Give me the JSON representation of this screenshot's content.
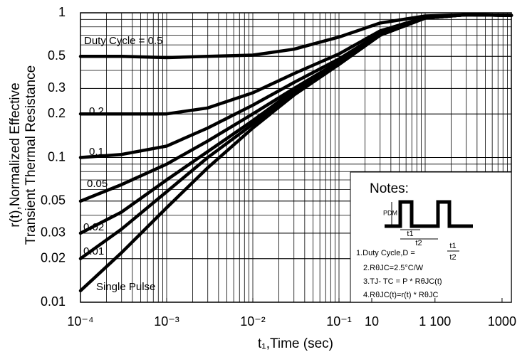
{
  "chart_data": {
    "type": "line",
    "log_x": true,
    "log_y": true,
    "grid": true,
    "xlabel": "t₁,Time (sec)",
    "ylabel": [
      "r(t),Normalized Effective",
      "Transient Thermal Resistance"
    ],
    "xlim": [
      0.0001,
      10
    ],
    "ylim": [
      0.01,
      1
    ],
    "xticks": [
      {
        "value": 0.0001,
        "label": "10⁻⁴"
      },
      {
        "value": 0.001,
        "label": "10⁻³"
      },
      {
        "value": 0.01,
        "label": "10⁻²"
      },
      {
        "value": 0.1,
        "label": "10⁻¹"
      },
      {
        "value": 0.24,
        "label": "10"
      },
      {
        "value": 1.3,
        "label": "1 100"
      },
      {
        "value": 7.8,
        "label": "1000"
      }
    ],
    "yticks": [
      1,
      0.5,
      0.3,
      0.2,
      0.1,
      0.05,
      0.03,
      0.02,
      0.01
    ],
    "x": [
      0.0001,
      0.0003,
      0.001,
      0.003,
      0.01,
      0.03,
      0.1,
      0.3,
      1,
      3,
      10
    ],
    "series": [
      {
        "name": "Duty Cycle = 0.5",
        "color": "#000000",
        "values": [
          0.5,
          0.5,
          0.49,
          0.5,
          0.51,
          0.56,
          0.68,
          0.85,
          0.95,
          0.97,
          0.96
        ]
      },
      {
        "name": "0.2",
        "color": "#000000",
        "values": [
          0.2,
          0.2,
          0.2,
          0.22,
          0.28,
          0.38,
          0.52,
          0.75,
          0.93,
          0.97,
          0.96
        ]
      },
      {
        "name": "0.1",
        "color": "#000000",
        "values": [
          0.1,
          0.105,
          0.12,
          0.16,
          0.23,
          0.33,
          0.48,
          0.72,
          0.92,
          0.97,
          0.96
        ]
      },
      {
        "name": "0.05",
        "color": "#000000",
        "values": [
          0.05,
          0.065,
          0.09,
          0.13,
          0.2,
          0.3,
          0.46,
          0.71,
          0.92,
          0.97,
          0.96
        ]
      },
      {
        "name": "0.02",
        "color": "#000000",
        "values": [
          0.03,
          0.042,
          0.07,
          0.11,
          0.18,
          0.29,
          0.45,
          0.7,
          0.92,
          0.97,
          0.96
        ]
      },
      {
        "name": "0.01",
        "color": "#000000",
        "values": [
          0.02,
          0.032,
          0.058,
          0.1,
          0.17,
          0.28,
          0.44,
          0.7,
          0.92,
          0.97,
          0.96
        ]
      },
      {
        "name": "Single Pulse",
        "color": "#000000",
        "values": [
          0.012,
          0.022,
          0.045,
          0.085,
          0.16,
          0.27,
          0.44,
          0.7,
          0.92,
          0.97,
          0.96
        ]
      }
    ],
    "notes": {
      "title": "Notes:",
      "pdm": "PDM",
      "t1": "t1",
      "t2": "t2",
      "lines": [
        "1.Duty Cycle,D =",
        "2.RθJC=2.5°C/W",
        "3.TJ- TC = P * RθJC(t)",
        "4.RθJC(t)=r(t) * RθJC"
      ],
      "frac_num": "t1",
      "frac_den": "t2"
    }
  }
}
